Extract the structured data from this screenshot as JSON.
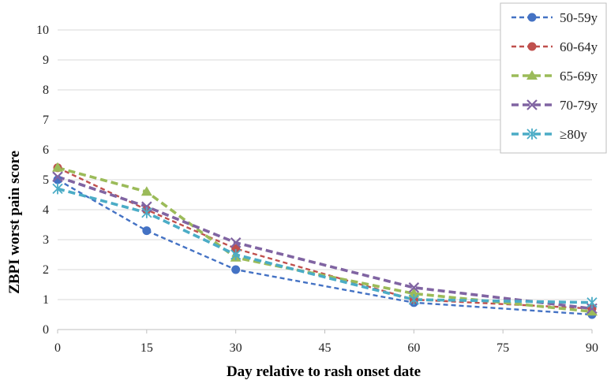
{
  "chart_data": {
    "type": "line",
    "title": "",
    "xlabel": "Day relative to rash onset date",
    "ylabel": "ZBPI worst pain score",
    "x": [
      0,
      15,
      30,
      45,
      60,
      75,
      90
    ],
    "xticks": [
      "0",
      "15",
      "30",
      "45",
      "60",
      "75",
      "90"
    ],
    "yticks": [
      "0",
      "1",
      "2",
      "3",
      "4",
      "5",
      "6",
      "7",
      "8",
      "9",
      "10"
    ],
    "xlim": [
      0,
      90
    ],
    "ylim": [
      0,
      10
    ],
    "grid": "horizontal",
    "legend_position": "top-right",
    "series": [
      {
        "name": "50-59y",
        "color": "#4472c4",
        "marker": "circle",
        "x": [
          0,
          15,
          30,
          60,
          90
        ],
        "values": [
          5.0,
          3.3,
          2.0,
          0.9,
          0.5
        ]
      },
      {
        "name": "60-64y",
        "color": "#c0504d",
        "marker": "circle",
        "x": [
          0,
          15,
          30,
          60,
          90
        ],
        "values": [
          5.4,
          4.0,
          2.7,
          1.0,
          0.7
        ]
      },
      {
        "name": "65-69y",
        "color": "#9bbb59",
        "marker": "triangle",
        "x": [
          0,
          15,
          30,
          60,
          90
        ],
        "values": [
          5.4,
          4.6,
          2.4,
          1.2,
          0.6
        ]
      },
      {
        "name": "70-79y",
        "color": "#8064a2",
        "marker": "x",
        "x": [
          0,
          15,
          30,
          60,
          90
        ],
        "values": [
          5.1,
          4.1,
          2.9,
          1.4,
          0.7
        ]
      },
      {
        "name": "≥80y",
        "color": "#4bacc6",
        "marker": "star",
        "x": [
          0,
          15,
          30,
          60,
          90
        ],
        "values": [
          4.7,
          3.9,
          2.5,
          1.0,
          0.9
        ]
      }
    ]
  }
}
